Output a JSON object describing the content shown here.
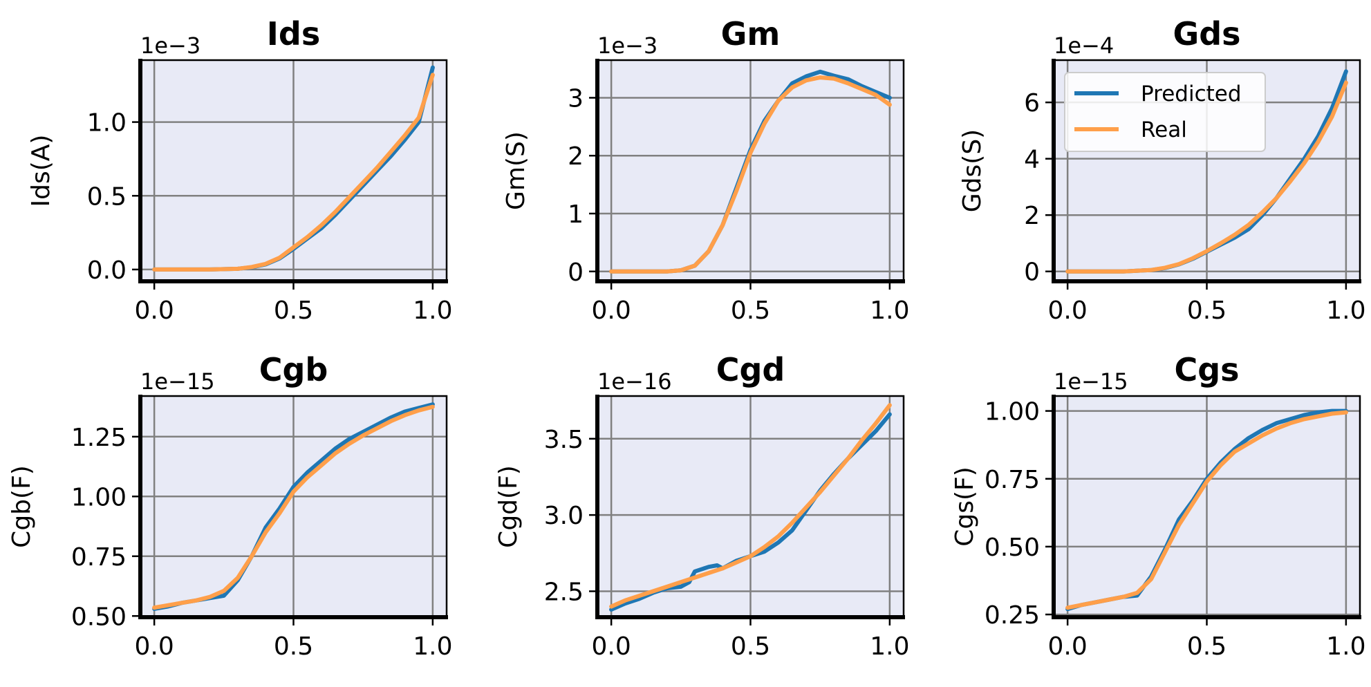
{
  "colors": {
    "predicted": "#1f77b4",
    "real": "#ff9f4a",
    "axes_bg": "#e8eaf6",
    "grid": "#808080"
  },
  "legend": {
    "items": [
      "Predicted",
      "Real"
    ],
    "placement": "upper-left of Gds panel"
  },
  "chart_data": [
    {
      "type": "line",
      "title": "Ids",
      "xlabel": "",
      "ylabel": "Ids(A)",
      "offset_label": "1e−3",
      "xlim": [
        -0.05,
        1.05
      ],
      "ylim": [
        -0.08,
        1.42
      ],
      "xticks": [
        0.0,
        0.5,
        1.0
      ],
      "xtick_labels": [
        "0.0",
        "0.5",
        "1.0"
      ],
      "yticks": [
        0.0,
        0.5,
        1.0
      ],
      "ytick_labels": [
        "0.0",
        "0.5",
        "1.0"
      ],
      "grid": true,
      "legend": false,
      "series": [
        {
          "name": "Predicted",
          "x": [
            0,
            0.1,
            0.2,
            0.3,
            0.35,
            0.4,
            0.45,
            0.5,
            0.55,
            0.6,
            0.65,
            0.7,
            0.75,
            0.8,
            0.85,
            0.9,
            0.95,
            1.0
          ],
          "y": [
            0,
            0,
            0,
            0.005,
            0.015,
            0.035,
            0.075,
            0.14,
            0.21,
            0.28,
            0.37,
            0.47,
            0.57,
            0.67,
            0.77,
            0.88,
            1.0,
            1.37
          ]
        },
        {
          "name": "Real",
          "x": [
            0,
            0.1,
            0.2,
            0.3,
            0.35,
            0.4,
            0.45,
            0.5,
            0.55,
            0.6,
            0.65,
            0.7,
            0.75,
            0.8,
            0.85,
            0.9,
            0.95,
            1.0
          ],
          "y": [
            0,
            0,
            0,
            0.005,
            0.017,
            0.038,
            0.08,
            0.15,
            0.22,
            0.3,
            0.39,
            0.49,
            0.59,
            0.69,
            0.8,
            0.91,
            1.03,
            1.32
          ]
        }
      ]
    },
    {
      "type": "line",
      "title": "Gm",
      "xlabel": "",
      "ylabel": "Gm(S)",
      "offset_label": "1e−3",
      "xlim": [
        -0.05,
        1.05
      ],
      "ylim": [
        -0.17,
        3.65
      ],
      "xticks": [
        0.0,
        0.5,
        1.0
      ],
      "xtick_labels": [
        "0.0",
        "0.5",
        "1.0"
      ],
      "yticks": [
        0,
        1,
        2,
        3
      ],
      "ytick_labels": [
        "0",
        "1",
        "2",
        "3"
      ],
      "grid": true,
      "legend": false,
      "series": [
        {
          "name": "Predicted",
          "x": [
            0,
            0.2,
            0.25,
            0.3,
            0.35,
            0.4,
            0.45,
            0.5,
            0.55,
            0.6,
            0.65,
            0.7,
            0.75,
            0.8,
            0.85,
            0.9,
            0.95,
            1.0
          ],
          "y": [
            0,
            0,
            0.02,
            0.1,
            0.35,
            0.8,
            1.45,
            2.1,
            2.6,
            2.95,
            3.25,
            3.37,
            3.45,
            3.38,
            3.32,
            3.2,
            3.1,
            3.0
          ]
        },
        {
          "name": "Real",
          "x": [
            0,
            0.2,
            0.25,
            0.3,
            0.35,
            0.4,
            0.45,
            0.5,
            0.55,
            0.6,
            0.65,
            0.7,
            0.75,
            0.8,
            0.85,
            0.9,
            0.95,
            1.0
          ],
          "y": [
            0,
            0,
            0.02,
            0.1,
            0.35,
            0.8,
            1.4,
            2.05,
            2.55,
            2.95,
            3.18,
            3.3,
            3.35,
            3.33,
            3.25,
            3.15,
            3.05,
            2.88
          ]
        }
      ]
    },
    {
      "type": "line",
      "title": "Gds",
      "xlabel": "",
      "ylabel": "Gds(S)",
      "offset_label": "1e−4",
      "xlim": [
        -0.05,
        1.05
      ],
      "ylim": [
        -0.35,
        7.5
      ],
      "xticks": [
        0.0,
        0.5,
        1.0
      ],
      "xtick_labels": [
        "0.0",
        "0.5",
        "1.0"
      ],
      "yticks": [
        0,
        2,
        4,
        6
      ],
      "ytick_labels": [
        "0",
        "2",
        "4",
        "6"
      ],
      "grid": true,
      "legend": true,
      "series": [
        {
          "name": "Predicted",
          "x": [
            0,
            0.1,
            0.2,
            0.3,
            0.35,
            0.4,
            0.45,
            0.5,
            0.55,
            0.6,
            0.65,
            0.7,
            0.75,
            0.8,
            0.85,
            0.9,
            0.95,
            1.0
          ],
          "y": [
            0,
            0,
            0,
            0.05,
            0.12,
            0.25,
            0.45,
            0.7,
            0.95,
            1.2,
            1.5,
            2.0,
            2.6,
            3.3,
            4.0,
            4.8,
            5.8,
            7.1
          ]
        },
        {
          "name": "Real",
          "x": [
            0,
            0.1,
            0.2,
            0.3,
            0.35,
            0.4,
            0.45,
            0.5,
            0.55,
            0.6,
            0.65,
            0.7,
            0.75,
            0.8,
            0.85,
            0.9,
            0.95,
            1.0
          ],
          "y": [
            0,
            0,
            0,
            0.05,
            0.13,
            0.26,
            0.47,
            0.72,
            1.0,
            1.3,
            1.65,
            2.1,
            2.6,
            3.2,
            3.85,
            4.6,
            5.5,
            6.7
          ]
        }
      ]
    },
    {
      "type": "line",
      "title": "Cgb",
      "xlabel": "",
      "ylabel": "Cgb(F)",
      "offset_label": "1e−15",
      "xlim": [
        -0.05,
        1.05
      ],
      "ylim": [
        0.495,
        1.42
      ],
      "xticks": [
        0.0,
        0.5,
        1.0
      ],
      "xtick_labels": [
        "0.0",
        "0.5",
        "1.0"
      ],
      "yticks": [
        0.5,
        0.75,
        1.0,
        1.25
      ],
      "ytick_labels": [
        "0.50",
        "0.75",
        "1.00",
        "1.25"
      ],
      "grid": true,
      "legend": false,
      "series": [
        {
          "name": "Predicted",
          "x": [
            0,
            0.05,
            0.1,
            0.15,
            0.2,
            0.25,
            0.3,
            0.35,
            0.4,
            0.45,
            0.5,
            0.55,
            0.6,
            0.65,
            0.7,
            0.75,
            0.8,
            0.85,
            0.9,
            0.95,
            1.0
          ],
          "y": [
            0.53,
            0.54,
            0.555,
            0.565,
            0.575,
            0.585,
            0.65,
            0.75,
            0.87,
            0.95,
            1.04,
            1.1,
            1.15,
            1.2,
            1.24,
            1.27,
            1.3,
            1.33,
            1.355,
            1.37,
            1.385
          ]
        },
        {
          "name": "Real",
          "x": [
            0,
            0.05,
            0.1,
            0.15,
            0.2,
            0.25,
            0.3,
            0.35,
            0.4,
            0.45,
            0.5,
            0.55,
            0.6,
            0.65,
            0.7,
            0.75,
            0.8,
            0.85,
            0.9,
            0.95,
            1.0
          ],
          "y": [
            0.535,
            0.545,
            0.555,
            0.565,
            0.58,
            0.605,
            0.66,
            0.75,
            0.85,
            0.93,
            1.02,
            1.08,
            1.13,
            1.18,
            1.22,
            1.255,
            1.285,
            1.315,
            1.34,
            1.36,
            1.375
          ]
        }
      ]
    },
    {
      "type": "line",
      "title": "Cgd",
      "xlabel": "",
      "ylabel": "Cgd(F)",
      "offset_label": "1e−16",
      "xlim": [
        -0.05,
        1.05
      ],
      "ylim": [
        2.33,
        3.78
      ],
      "xticks": [
        0.0,
        0.5,
        1.0
      ],
      "xtick_labels": [
        "0.0",
        "0.5",
        "1.0"
      ],
      "yticks": [
        2.5,
        3.0,
        3.5
      ],
      "ytick_labels": [
        "2.5",
        "3.0",
        "3.5"
      ],
      "grid": true,
      "legend": false,
      "series": [
        {
          "name": "Predicted",
          "x": [
            0,
            0.05,
            0.1,
            0.15,
            0.2,
            0.25,
            0.28,
            0.3,
            0.35,
            0.38,
            0.4,
            0.45,
            0.5,
            0.55,
            0.6,
            0.65,
            0.7,
            0.75,
            0.8,
            0.85,
            0.9,
            0.95,
            1.0
          ],
          "y": [
            2.38,
            2.42,
            2.45,
            2.49,
            2.52,
            2.53,
            2.56,
            2.63,
            2.66,
            2.67,
            2.65,
            2.7,
            2.73,
            2.76,
            2.82,
            2.9,
            3.03,
            3.16,
            3.27,
            3.37,
            3.46,
            3.55,
            3.66
          ]
        },
        {
          "name": "Real",
          "x": [
            0,
            0.05,
            0.1,
            0.15,
            0.2,
            0.25,
            0.3,
            0.35,
            0.4,
            0.45,
            0.5,
            0.55,
            0.6,
            0.65,
            0.7,
            0.75,
            0.8,
            0.85,
            0.9,
            0.95,
            1.0
          ],
          "y": [
            2.4,
            2.44,
            2.47,
            2.5,
            2.53,
            2.56,
            2.59,
            2.62,
            2.65,
            2.69,
            2.73,
            2.79,
            2.86,
            2.95,
            3.05,
            3.15,
            3.26,
            3.37,
            3.49,
            3.6,
            3.72
          ]
        }
      ]
    },
    {
      "type": "line",
      "title": "Cgs",
      "xlabel": "",
      "ylabel": "Cgs(F)",
      "offset_label": "1e−15",
      "xlim": [
        -0.05,
        1.05
      ],
      "ylim": [
        0.24,
        1.055
      ],
      "xticks": [
        0.0,
        0.5,
        1.0
      ],
      "xtick_labels": [
        "0.0",
        "0.5",
        "1.0"
      ],
      "yticks": [
        0.25,
        0.5,
        0.75,
        1.0
      ],
      "ytick_labels": [
        "0.25",
        "0.50",
        "0.75",
        "1.00"
      ],
      "grid": true,
      "legend": false,
      "series": [
        {
          "name": "Predicted",
          "x": [
            0,
            0.05,
            0.1,
            0.15,
            0.2,
            0.25,
            0.3,
            0.35,
            0.4,
            0.45,
            0.5,
            0.55,
            0.6,
            0.65,
            0.7,
            0.75,
            0.8,
            0.85,
            0.9,
            0.95,
            1.0
          ],
          "y": [
            0.27,
            0.285,
            0.295,
            0.305,
            0.315,
            0.32,
            0.39,
            0.49,
            0.6,
            0.67,
            0.75,
            0.81,
            0.86,
            0.9,
            0.93,
            0.955,
            0.97,
            0.985,
            0.995,
            1.0,
            1.0
          ]
        },
        {
          "name": "Real",
          "x": [
            0,
            0.05,
            0.1,
            0.15,
            0.2,
            0.25,
            0.3,
            0.35,
            0.4,
            0.45,
            0.5,
            0.55,
            0.6,
            0.65,
            0.7,
            0.75,
            0.8,
            0.85,
            0.9,
            0.95,
            1.0
          ],
          "y": [
            0.275,
            0.285,
            0.295,
            0.305,
            0.315,
            0.33,
            0.38,
            0.48,
            0.58,
            0.66,
            0.74,
            0.8,
            0.85,
            0.88,
            0.91,
            0.935,
            0.955,
            0.97,
            0.98,
            0.99,
            0.995
          ]
        }
      ]
    }
  ]
}
